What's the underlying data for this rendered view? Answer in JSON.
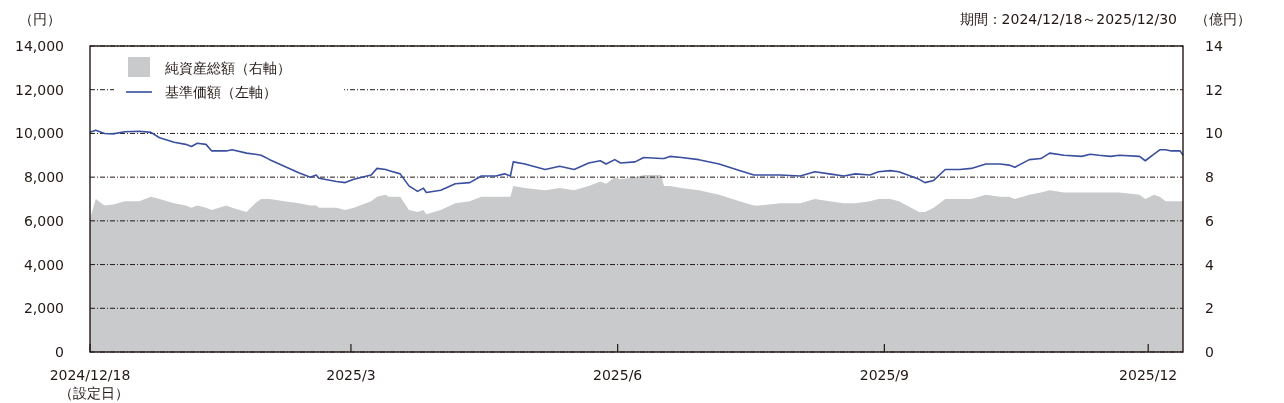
{
  "chart_data": {
    "type": "area",
    "ylabel": "（円）",
    "y2label": "（億円）",
    "annotations": [
      "期間：2024/12/18～2025/12/30",
      "（設定日）"
    ],
    "x": [
      "2024-12-18",
      "2024-12-20",
      "2024-12-23",
      "2024-12-26",
      "2024-12-30",
      "2025-01-04",
      "2025-01-08",
      "2025-01-11",
      "2025-01-16",
      "2025-01-20",
      "2025-01-22",
      "2025-01-24",
      "2025-01-27",
      "2025-01-29",
      "2025-02-03",
      "2025-02-05",
      "2025-02-10",
      "2025-02-13",
      "2025-02-15",
      "2025-02-18",
      "2025-02-23",
      "2025-02-28",
      "2025-03-04",
      "2025-03-06",
      "2025-03-07",
      "2025-03-13",
      "2025-03-16",
      "2025-03-19",
      "2025-03-25",
      "2025-03-27",
      "2025-03-30",
      "2025-03-31",
      "2025-04-04",
      "2025-04-07",
      "2025-04-10",
      "2025-04-12",
      "2025-04-13",
      "2025-04-18",
      "2025-04-23",
      "2025-04-28",
      "2025-05-02",
      "2025-05-07",
      "2025-05-10",
      "2025-05-12",
      "2025-05-13",
      "2025-05-17",
      "2025-05-24",
      "2025-05-29",
      "2025-06-03",
      "2025-06-08",
      "2025-06-12",
      "2025-06-14",
      "2025-06-17",
      "2025-06-19",
      "2025-06-24",
      "2025-06-27",
      "2025-07-03",
      "2025-07-04",
      "2025-07-06",
      "2025-07-10",
      "2025-07-16",
      "2025-07-23",
      "2025-07-30",
      "2025-08-04",
      "2025-08-06",
      "2025-08-13",
      "2025-08-20",
      "2025-08-25",
      "2025-08-30",
      "2025-09-04",
      "2025-09-08",
      "2025-09-13",
      "2025-09-16",
      "2025-09-20",
      "2025-09-23",
      "2025-09-30",
      "2025-10-02",
      "2025-10-05",
      "2025-10-09",
      "2025-10-14",
      "2025-10-18",
      "2025-10-23",
      "2025-10-28",
      "2025-10-31",
      "2025-11-02",
      "2025-11-07",
      "2025-11-11",
      "2025-11-14",
      "2025-11-19",
      "2025-11-25",
      "2025-11-28",
      "2025-12-01",
      "2025-12-05",
      "2025-12-08",
      "2025-12-15",
      "2025-12-17",
      "2025-12-20",
      "2025-12-22",
      "2025-12-24",
      "2025-12-26",
      "2025-12-29",
      "2025-12-30"
    ],
    "series": [
      {
        "name": "純資産総額（右軸）",
        "axis": "y2",
        "color": "#c8cacb",
        "values": [
          6.1,
          7.0,
          6.7,
          6.75,
          6.9,
          6.9,
          7.1,
          7.0,
          6.8,
          6.7,
          6.6,
          6.7,
          6.6,
          6.5,
          6.7,
          6.6,
          6.4,
          6.8,
          7.0,
          7.0,
          6.9,
          6.8,
          6.7,
          6.7,
          6.6,
          6.6,
          6.5,
          6.6,
          6.9,
          7.1,
          7.2,
          7.1,
          7.1,
          6.5,
          6.4,
          6.5,
          6.3,
          6.5,
          6.8,
          6.9,
          7.1,
          7.1,
          7.1,
          7.1,
          7.6,
          7.5,
          7.4,
          7.5,
          7.4,
          7.6,
          7.8,
          7.7,
          8.0,
          7.9,
          8.0,
          8.1,
          8.1,
          7.6,
          7.6,
          7.5,
          7.4,
          7.2,
          6.9,
          6.7,
          6.7,
          6.8,
          6.8,
          7.0,
          6.9,
          6.8,
          6.8,
          6.9,
          7.0,
          7.0,
          6.9,
          6.4,
          6.4,
          6.6,
          7.0,
          7.0,
          7.0,
          7.2,
          7.1,
          7.1,
          7.0,
          7.2,
          7.3,
          7.4,
          7.3,
          7.3,
          7.3,
          7.3,
          7.3,
          7.3,
          7.2,
          7.0,
          7.2,
          7.1,
          6.9,
          6.9,
          6.9,
          6.9
        ]
      },
      {
        "name": "基準価額（左軸）",
        "type": "line",
        "color": "#3a4f9e",
        "values": [
          10050,
          10150,
          10000,
          9980,
          10080,
          10100,
          10050,
          9800,
          9600,
          9500,
          9400,
          9550,
          9500,
          9200,
          9200,
          9250,
          9100,
          9050,
          9000,
          8800,
          8500,
          8200,
          8000,
          8100,
          7950,
          7800,
          7750,
          7900,
          8100,
          8400,
          8350,
          8300,
          8150,
          7600,
          7350,
          7500,
          7300,
          7400,
          7700,
          7750,
          8050,
          8050,
          8150,
          8050,
          8700,
          8600,
          8350,
          8500,
          8350,
          8650,
          8750,
          8600,
          8800,
          8650,
          8700,
          8900,
          8850,
          8850,
          8950,
          8900,
          8800,
          8600,
          8300,
          8100,
          8100,
          8100,
          8050,
          8250,
          8150,
          8050,
          8150,
          8100,
          8250,
          8300,
          8250,
          7900,
          7750,
          7850,
          8350,
          8350,
          8400,
          8600,
          8600,
          8550,
          8450,
          8800,
          8850,
          9100,
          9000,
          8950,
          9050,
          9000,
          8950,
          9000,
          8950,
          8750,
          9050,
          9250,
          9250,
          9200,
          9200,
          9000
        ]
      }
    ],
    "xlim": [
      "2024-12-18",
      "2025-12-30"
    ],
    "xticks": [
      {
        "value": "2024-12-18",
        "label": "2024/12/18"
      },
      {
        "value": "2025-03-18",
        "label": "2025/3"
      },
      {
        "value": "2025-06-18",
        "label": "2025/6"
      },
      {
        "value": "2025-09-18",
        "label": "2025/9"
      },
      {
        "value": "2025-12-18",
        "label": "2025/12"
      }
    ],
    "ylim": [
      0,
      14000
    ],
    "yticks": [
      {
        "value": 0,
        "label": "0"
      },
      {
        "value": 2000,
        "label": "2,000"
      },
      {
        "value": 4000,
        "label": "4,000"
      },
      {
        "value": 6000,
        "label": "6,000"
      },
      {
        "value": 8000,
        "label": "8,000"
      },
      {
        "value": 10000,
        "label": "10,000"
      },
      {
        "value": 12000,
        "label": "12,000"
      },
      {
        "value": 14000,
        "label": "14,000"
      }
    ],
    "y2lim": [
      0,
      14
    ],
    "y2ticks": [
      0,
      2,
      4,
      6,
      8,
      10,
      12,
      14
    ],
    "grid": "y",
    "legend": "top left",
    "line_style": "solid",
    "marker": "none"
  }
}
